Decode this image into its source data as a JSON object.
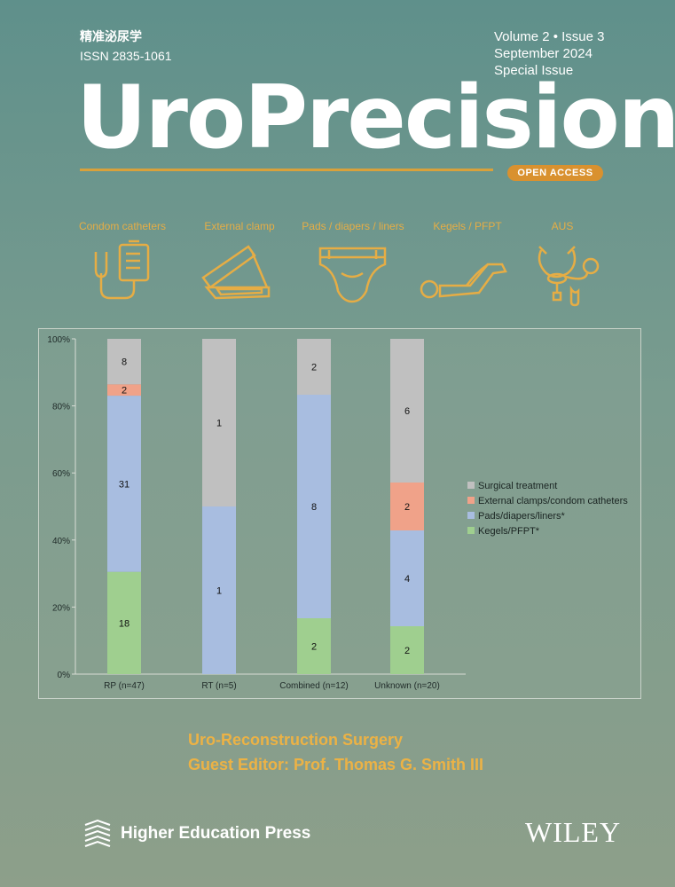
{
  "header": {
    "chinese_title": "精准泌尿学",
    "issn": "ISSN 2835-1061",
    "volume_issue": "Volume  2 • Issue  3",
    "date": "September 2024",
    "special": "Special Issue"
  },
  "journal_title": "UroPrecision",
  "open_access": "OPEN ACCESS",
  "icons": [
    {
      "label": "Condom catheters",
      "icon": "condom-catheter-icon"
    },
    {
      "label": "External clamp",
      "icon": "external-clamp-icon"
    },
    {
      "label": "Pads / diapers / liners",
      "icon": "diaper-icon"
    },
    {
      "label": "Kegels / PFPT",
      "icon": "kegel-pose-icon"
    },
    {
      "label": "AUS",
      "icon": "artificial-sphincter-icon"
    }
  ],
  "colors": {
    "accent": "#e6ad45",
    "surgical": "#c0c0c0",
    "clamps": "#f0a289",
    "pads": "#a8bde0",
    "kegels": "#9fcf8f"
  },
  "chart_data": {
    "type": "bar",
    "stacked": true,
    "percent": true,
    "categories": [
      "RP (n=47)",
      "RT (n=5)",
      "Combined (n=12)",
      "Unknown (n=20)"
    ],
    "series": [
      {
        "name": "Kegels/PFPT*",
        "values": [
          18,
          0,
          2,
          2
        ]
      },
      {
        "name": "Pads/diapers/liners*",
        "values": [
          31,
          1,
          8,
          4
        ]
      },
      {
        "name": "External clamps/condom catheters",
        "values": [
          2,
          0,
          0,
          2
        ]
      },
      {
        "name": "Surgical treatment",
        "values": [
          8,
          1,
          2,
          6
        ]
      }
    ],
    "legend_order": [
      "Surgical treatment",
      "External clamps/condom catheters",
      "Pads/diapers/liners*",
      "Kegels/PFPT*"
    ],
    "yticks": [
      "0%",
      "20%",
      "40%",
      "60%",
      "80%",
      "100%"
    ],
    "ylim": [
      0,
      100
    ],
    "legend_position": "right"
  },
  "subtitle_line1": "Uro-Reconstruction Surgery",
  "subtitle_line2": "Guest Editor: Prof. Thomas G. Smith III",
  "publisher": "Higher Education Press",
  "wiley": "WILEY"
}
